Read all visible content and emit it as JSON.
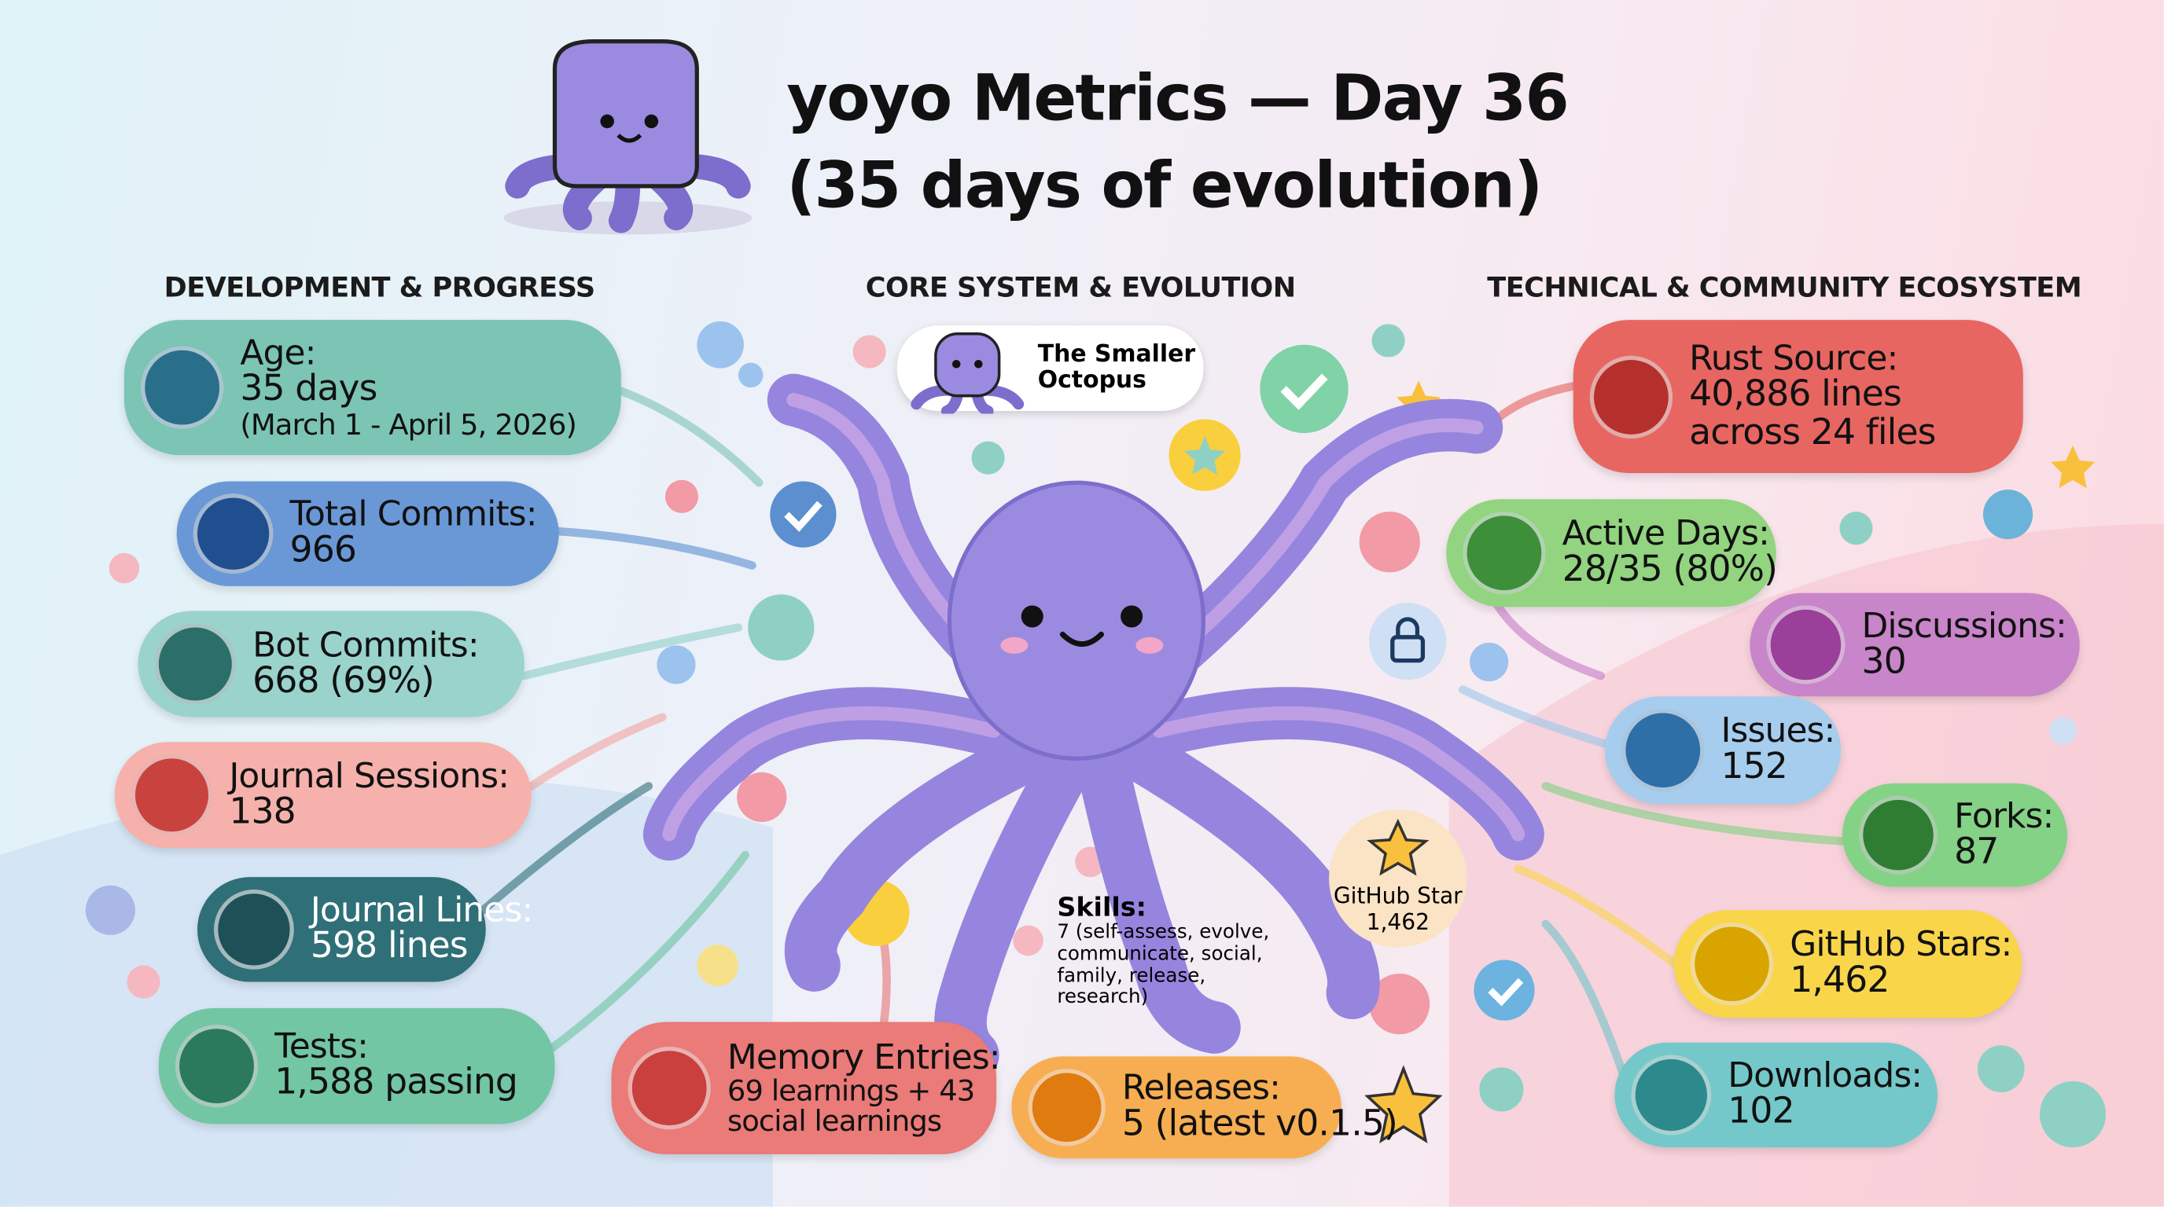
{
  "header": {
    "title": [
      "yoyo Metrics — Day 36",
      "(35 days of evolution)"
    ]
  },
  "sections": [
    {
      "heading": "DEVELOPMENT & PROGRESS",
      "cards": [
        {
          "label": "Age:",
          "lines": [
            "35 days",
            "(March 1 - April 5, 2026)"
          ]
        },
        {
          "label": "Total Commits:",
          "lines": [
            "966"
          ]
        },
        {
          "label": "Bot Commits:",
          "lines": [
            "668 (69%)"
          ]
        },
        {
          "label": "Journal Sessions:",
          "lines": [
            "138"
          ]
        },
        {
          "label": "Journal Lines:",
          "lines": [
            "598 lines"
          ]
        },
        {
          "label": "Tests:",
          "lines": [
            "1,588 passing"
          ]
        }
      ]
    },
    {
      "heading": "CORE SYSTEM & EVOLUTION",
      "cards": [
        {
          "label": "Memory Entries:",
          "lines": [
            "69 learnings + 43",
            "social learnings"
          ]
        },
        {
          "label": "Releases:",
          "lines": [
            "5 (latest v0.1.5)"
          ]
        }
      ]
    },
    {
      "heading": "TECHNICAL & COMMUNITY ECOSYSTEM",
      "cards": [
        {
          "label": "Rust Source:",
          "lines": [
            "40,886 lines",
            "across 24 files"
          ]
        },
        {
          "label": "Active Days:",
          "lines": [
            "28/35 (80%)"
          ]
        },
        {
          "label": "Discussions:",
          "lines": [
            "30"
          ]
        },
        {
          "label": "Issues:",
          "lines": [
            "152"
          ]
        },
        {
          "label": "Forks:",
          "lines": [
            "87"
          ]
        },
        {
          "label": "GitHub Stars:",
          "lines": [
            "1,462"
          ]
        },
        {
          "label": "Downloads:",
          "lines": [
            "102"
          ]
        }
      ]
    }
  ],
  "mascot_badge": [
    "The Smaller",
    "Octopus"
  ],
  "skills": {
    "label": "Skills:",
    "lines": [
      "7 (self-assess, evolve,",
      "communicate, social,",
      "family, release,",
      "research)"
    ]
  },
  "star_badge": [
    "GitHub Star",
    "1,462"
  ]
}
